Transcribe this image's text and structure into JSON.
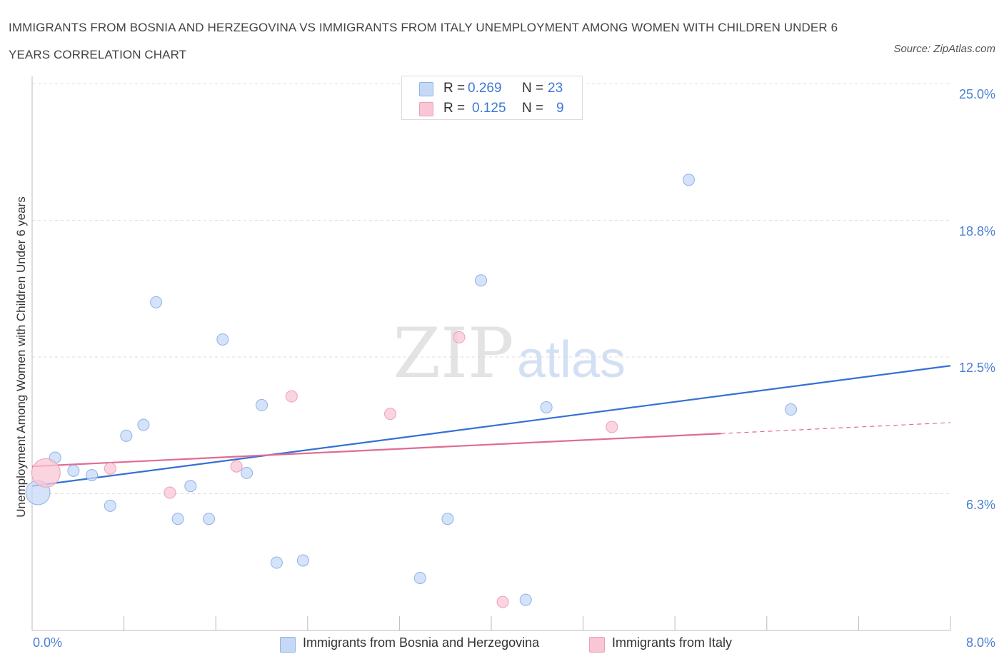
{
  "title": "IMMIGRANTS FROM BOSNIA AND HERZEGOVINA VS IMMIGRANTS FROM ITALY UNEMPLOYMENT AMONG WOMEN WITH CHILDREN UNDER 6 YEARS CORRELATION CHART",
  "source": "Source: ZipAtlas.com",
  "watermark": {
    "zip": "ZIP",
    "atlas": "atlas"
  },
  "legend": {
    "rows": [
      {
        "r_label": "R =",
        "r_value": "0.269",
        "n_label": "N =",
        "n_value": "23",
        "color": "#a9c8f5"
      },
      {
        "r_label": "R =",
        "r_value": "0.125",
        "n_label": "N =",
        "n_value": "9",
        "color": "#f7b6c8"
      }
    ]
  },
  "bottom_legend": {
    "series1": "Immigrants from Bosnia and Herzegovina",
    "series2": "Immigrants from Italy"
  },
  "colors": {
    "blue_fill": "#c5d9f7",
    "blue_stroke": "#8fb2e6",
    "blue_line": "#3570d4",
    "pink_fill": "#f8c6d4",
    "pink_stroke": "#eda0b6",
    "pink_line": "#e06b93",
    "grid": "#dddddd",
    "tick_text": "#4a7fd0"
  },
  "chart_data": {
    "type": "scatter",
    "ylabel": "Unemployment Among Women with Children Under 6 years",
    "xlabel": "",
    "x_ticks": [
      "0.0%",
      "8.0%"
    ],
    "y_ticks": [
      "6.3%",
      "12.5%",
      "18.8%",
      "25.0%"
    ],
    "xlim": [
      0,
      8
    ],
    "ylim": [
      0,
      25
    ],
    "grid": true,
    "series": [
      {
        "name": "Immigrants from Bosnia and Herzegovina",
        "points": [
          [
            0.05,
            6.3,
            3
          ],
          [
            0.2,
            7.9,
            1
          ],
          [
            0.36,
            7.3,
            1
          ],
          [
            0.52,
            7.1,
            1
          ],
          [
            0.68,
            5.7,
            1
          ],
          [
            0.82,
            8.9,
            1
          ],
          [
            0.97,
            9.4,
            1
          ],
          [
            1.08,
            15.0,
            1
          ],
          [
            1.27,
            5.1,
            1
          ],
          [
            1.38,
            6.6,
            1
          ],
          [
            1.54,
            5.1,
            1
          ],
          [
            1.66,
            13.3,
            1
          ],
          [
            1.87,
            7.2,
            1
          ],
          [
            2.0,
            10.3,
            1
          ],
          [
            2.13,
            3.1,
            1
          ],
          [
            2.36,
            3.2,
            1
          ],
          [
            3.38,
            2.4,
            1
          ],
          [
            3.62,
            5.1,
            1
          ],
          [
            3.91,
            16.0,
            1
          ],
          [
            4.3,
            1.4,
            1
          ],
          [
            4.48,
            10.2,
            1
          ],
          [
            5.72,
            20.6,
            1
          ],
          [
            6.61,
            10.1,
            1
          ]
        ],
        "trend": {
          "x": [
            0.0,
            8.0
          ],
          "y": [
            6.6,
            12.1
          ]
        }
      },
      {
        "name": "Immigrants from Italy",
        "points": [
          [
            0.12,
            7.2,
            4
          ],
          [
            0.68,
            7.4,
            1
          ],
          [
            1.2,
            6.3,
            1
          ],
          [
            1.78,
            7.5,
            1
          ],
          [
            2.26,
            10.7,
            1
          ],
          [
            3.12,
            9.9,
            1
          ],
          [
            3.72,
            13.4,
            1
          ],
          [
            4.1,
            1.3,
            1
          ],
          [
            5.05,
            9.3,
            1
          ]
        ],
        "trend": {
          "x": [
            0.0,
            6.0
          ],
          "y": [
            7.5,
            9.0
          ],
          "dashed_to": {
            "x": 8.0,
            "y": 9.5
          }
        }
      }
    ]
  }
}
